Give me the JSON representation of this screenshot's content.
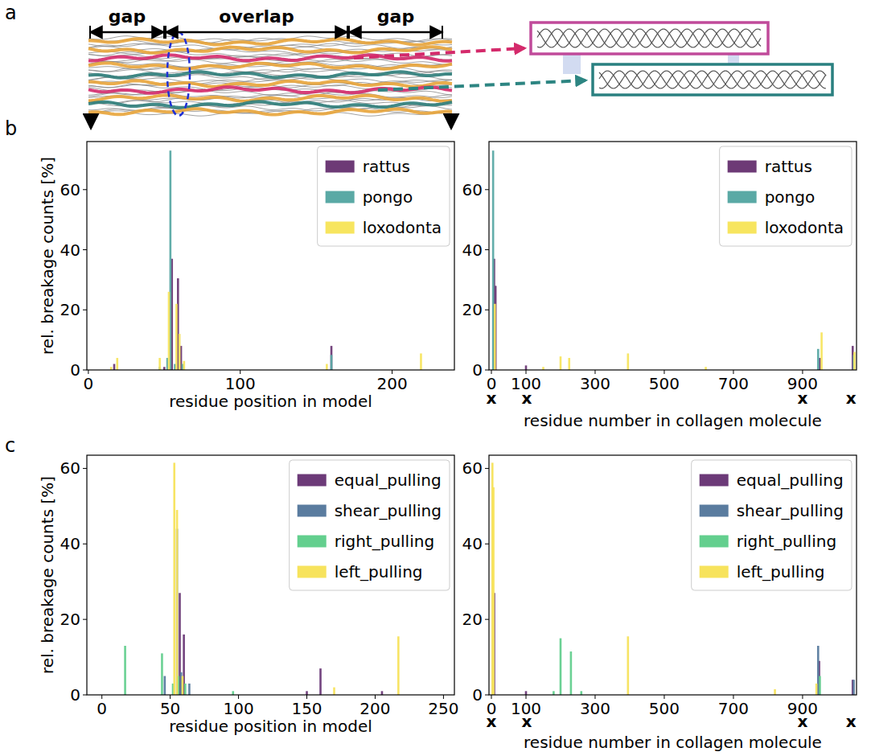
{
  "panels": [
    "a",
    "b",
    "c"
  ],
  "diagram": {
    "segments": [
      "gap",
      "overlap",
      "gap"
    ]
  },
  "chart_data": [
    {
      "type": "bar",
      "x_label": "residue position in model",
      "y_label": "rel. breakage counts [%]",
      "xlim": [
        -1,
        241
      ],
      "ylim": [
        0,
        76
      ],
      "xticks": [
        0,
        100,
        200
      ],
      "yticks": [
        0,
        20,
        40,
        60
      ],
      "legend": "upper right",
      "series": [
        {
          "name": "rattus",
          "color": "#6d3a76",
          "x": [
            17,
            50,
            55,
            59,
            61,
            160
          ],
          "values": [
            2,
            1,
            37,
            30.5,
            8,
            8
          ]
        },
        {
          "name": "pongo",
          "color": "#5aa9a5",
          "x": [
            47,
            52,
            54,
            57,
            62,
            160
          ],
          "values": [
            1,
            4,
            73,
            2,
            2,
            5
          ]
        },
        {
          "name": "loxodonta",
          "color": "#f7e55f",
          "x": [
            15,
            19,
            47,
            53,
            58,
            60,
            63,
            157,
            219
          ],
          "values": [
            1,
            4,
            4,
            26,
            22,
            12,
            3,
            2,
            5.5
          ]
        }
      ]
    },
    {
      "type": "bar",
      "x_label": "residue number in collagen molecule",
      "xlim": [
        -7,
        1056
      ],
      "ylim": [
        0,
        76
      ],
      "xticks": [
        0,
        100,
        300,
        500,
        700,
        900
      ],
      "yticks": [
        0,
        20,
        40,
        60
      ],
      "legend": "upper right",
      "x_markers": [
        {
          "x": 0,
          "label": "x"
        },
        {
          "x": 102,
          "label": "x"
        },
        {
          "x": 900,
          "label": "x"
        },
        {
          "x": 1040,
          "label": "x"
        }
      ],
      "series": [
        {
          "name": "rattus",
          "color": "#6d3a76",
          "x": [
            8,
            12,
            100,
            950,
            1045
          ],
          "values": [
            37,
            28,
            1.5,
            4,
            8
          ]
        },
        {
          "name": "pongo",
          "color": "#5aa9a5",
          "x": [
            5,
            945,
            1048
          ],
          "values": [
            73,
            7,
            5
          ]
        },
        {
          "name": "loxodonta",
          "color": "#f7e55f",
          "x": [
            10,
            150,
            200,
            225,
            395,
            620,
            955,
            1050
          ],
          "values": [
            22,
            1,
            4.5,
            4,
            5.5,
            1,
            12.5,
            6
          ]
        }
      ]
    },
    {
      "type": "bar",
      "x_label": "residue position in model",
      "y_label": "rel. breakage counts [%]",
      "xlim": [
        -11,
        258
      ],
      "ylim": [
        0,
        63.5
      ],
      "xticks": [
        0,
        50,
        100,
        150,
        200,
        250
      ],
      "yticks": [
        0,
        20,
        40,
        60
      ],
      "legend": "upper right",
      "series": [
        {
          "name": "equal_pulling",
          "color": "#6c3a78",
          "x": [
            57,
            60,
            150,
            160,
            205
          ],
          "values": [
            27,
            16,
            1,
            7,
            1
          ]
        },
        {
          "name": "shear_pulling",
          "color": "#5a7c9f",
          "x": [
            46,
            55,
            58,
            64
          ],
          "values": [
            5,
            44,
            6,
            3
          ]
        },
        {
          "name": "right_pulling",
          "color": "#63cf8e",
          "x": [
            17,
            44,
            52,
            56,
            61,
            96
          ],
          "values": [
            13,
            11,
            3,
            5,
            3,
            1
          ]
        },
        {
          "name": "left_pulling",
          "color": "#f7e35c",
          "x": [
            53,
            55,
            59,
            170,
            217
          ],
          "values": [
            61.5,
            49,
            5,
            2,
            15.5
          ]
        }
      ]
    },
    {
      "type": "bar",
      "x_label": "residue number in collagen molecule",
      "xlim": [
        -7,
        1056
      ],
      "ylim": [
        0,
        63.5
      ],
      "xticks": [
        0,
        100,
        300,
        500,
        700,
        900
      ],
      "yticks": [
        0,
        20,
        40,
        60
      ],
      "legend": "upper right",
      "x_markers": [
        {
          "x": 0,
          "label": "x"
        },
        {
          "x": 102,
          "label": "x"
        },
        {
          "x": 900,
          "label": "x"
        },
        {
          "x": 1040,
          "label": "x"
        }
      ],
      "series": [
        {
          "name": "equal_pulling",
          "color": "#6c3a78",
          "x": [
            8,
            100,
            948,
            1045
          ],
          "values": [
            27,
            1,
            9,
            4
          ]
        },
        {
          "name": "shear_pulling",
          "color": "#5a7c9f",
          "x": [
            5,
            945,
            1048
          ],
          "values": [
            15,
            13,
            4
          ]
        },
        {
          "name": "right_pulling",
          "color": "#63cf8e",
          "x": [
            180,
            200,
            230,
            260,
            950
          ],
          "values": [
            1,
            15,
            11.5,
            1,
            5
          ]
        },
        {
          "name": "left_pulling",
          "color": "#f7e35c",
          "x": [
            3,
            6,
            395,
            820,
            940
          ],
          "values": [
            61.5,
            55,
            15.5,
            1.5,
            3
          ]
        }
      ]
    }
  ]
}
